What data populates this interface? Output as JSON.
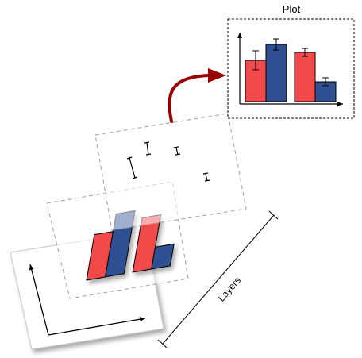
{
  "plot": {
    "title": "Plot"
  },
  "layers_label": "Layers",
  "colors": {
    "red": "#f24a4a",
    "blue": "#2f4f92",
    "arrow": "#990000",
    "frame_dash": "#a0a0a0",
    "ink": "#000000"
  },
  "bar_data": {
    "type": "bar",
    "groups": 2,
    "series": [
      {
        "color": "red",
        "values": [
          0.52,
          0.62
        ]
      },
      {
        "color": "blue",
        "values": [
          0.72,
          0.25
        ]
      }
    ],
    "error": [
      {
        "values": [
          0.12,
          0.07
        ]
      },
      {
        "values": [
          0.05,
          0.05
        ]
      }
    ]
  }
}
